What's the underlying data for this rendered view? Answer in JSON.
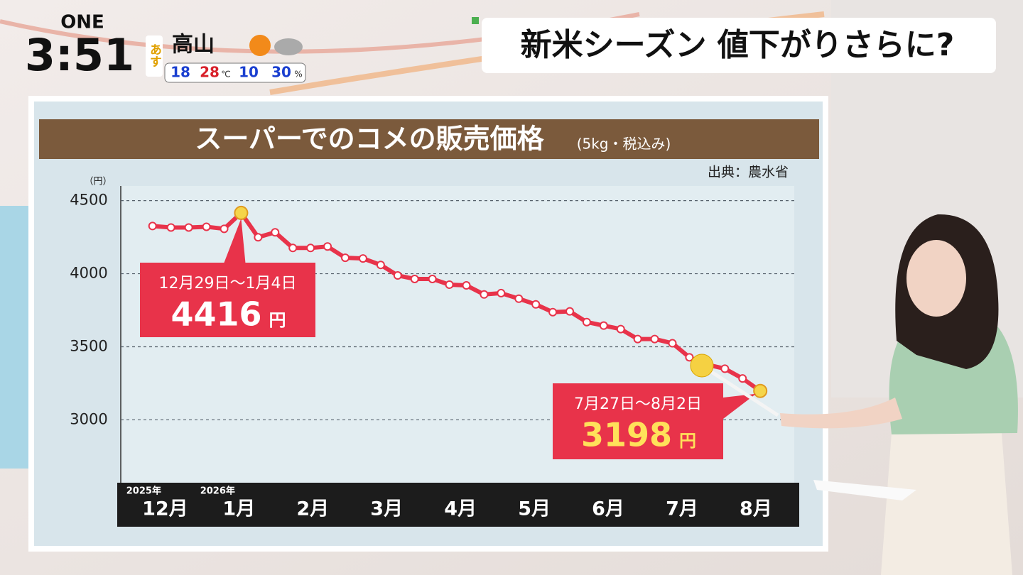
{
  "header": {
    "channel": "ONE",
    "clock": "3:51",
    "weather_day": "あす",
    "city": "高山",
    "temp_low": "18",
    "temp_high": "28",
    "temp_unit": "℃",
    "rain_1": "10",
    "rain_2": "30",
    "rain_unit": "%",
    "headline": "新米シーズン 値下がりさらに?"
  },
  "chart_data": {
    "type": "line",
    "title": "スーパーでのコメの販売価格",
    "subtitle": "(5kg・税込み)",
    "source": "出典：農水省",
    "y_unit": "（円）",
    "ylim": [
      2570,
      4600
    ],
    "yticks": [
      3000,
      3500,
      4000,
      4500
    ],
    "grid": true,
    "xlim": [
      -0.6,
      8.52
    ],
    "xticks": [
      {
        "value": 0,
        "label": "12月"
      },
      {
        "value": 1,
        "label": "1月"
      },
      {
        "value": 2,
        "label": "2月"
      },
      {
        "value": 3,
        "label": "3月"
      },
      {
        "value": 4,
        "label": "4月"
      },
      {
        "value": 5,
        "label": "5月"
      },
      {
        "value": 6,
        "label": "6月"
      },
      {
        "value": 7,
        "label": "7月"
      },
      {
        "value": 8,
        "label": "8月"
      }
    ],
    "year_labels": [
      {
        "value": 0,
        "label": "2025年"
      },
      {
        "value": 1,
        "label": "2026年"
      }
    ],
    "series": [
      {
        "color": "#e8334a",
        "x": [
          -0.17,
          0.08,
          0.32,
          0.56,
          0.8,
          1.03,
          1.26,
          1.49,
          1.73,
          1.97,
          2.2,
          2.44,
          2.68,
          2.92,
          3.15,
          3.38,
          3.62,
          3.85,
          4.08,
          4.32,
          4.55,
          4.79,
          5.02,
          5.25,
          5.48,
          5.71,
          5.94,
          6.17,
          6.4,
          6.63,
          6.87,
          7.1,
          7.33,
          7.58,
          7.82,
          8.06
        ],
        "values": [
          4326,
          4316,
          4316,
          4321,
          4307,
          4416,
          4249,
          4283,
          4176,
          4176,
          4186,
          4109,
          4104,
          4060,
          3988,
          3964,
          3964,
          3925,
          3920,
          3858,
          3867,
          3829,
          3790,
          3737,
          3742,
          3669,
          3645,
          3621,
          3553,
          3553,
          3524,
          3428,
          3379,
          3350,
          3283,
          3198
        ]
      }
    ],
    "annotations": [
      {
        "date": "12月29日～1月4日",
        "point": 5,
        "unit": "円"
      },
      {
        "date": "7月27日～8月2日",
        "point": 35,
        "unit": "円"
      }
    ]
  }
}
